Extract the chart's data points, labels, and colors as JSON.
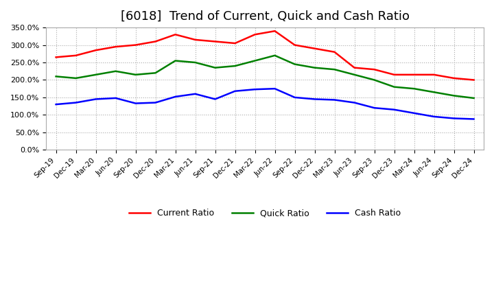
{
  "title": "[6018]  Trend of Current, Quick and Cash Ratio",
  "x_labels": [
    "Sep-19",
    "Dec-19",
    "Mar-20",
    "Jun-20",
    "Sep-20",
    "Dec-20",
    "Mar-21",
    "Jun-21",
    "Sep-21",
    "Dec-21",
    "Mar-22",
    "Jun-22",
    "Sep-22",
    "Dec-22",
    "Mar-23",
    "Jun-23",
    "Sep-23",
    "Dec-23",
    "Mar-24",
    "Jun-24",
    "Sep-24",
    "Dec-24"
  ],
  "current_ratio": [
    265,
    270,
    285,
    295,
    300,
    310,
    330,
    315,
    310,
    305,
    330,
    340,
    300,
    290,
    280,
    235,
    230,
    215,
    215,
    215,
    205,
    200
  ],
  "quick_ratio": [
    210,
    205,
    215,
    225,
    215,
    220,
    255,
    250,
    235,
    240,
    255,
    270,
    245,
    235,
    230,
    215,
    200,
    180,
    175,
    165,
    155,
    148
  ],
  "cash_ratio": [
    130,
    135,
    145,
    148,
    133,
    135,
    152,
    160,
    145,
    168,
    173,
    175,
    150,
    145,
    143,
    135,
    120,
    115,
    105,
    95,
    90,
    88
  ],
  "ylim": [
    0,
    350
  ],
  "yticks": [
    0,
    50,
    100,
    150,
    200,
    250,
    300,
    350
  ],
  "current_color": "#FF0000",
  "quick_color": "#008000",
  "cash_color": "#0000FF",
  "bg_color": "#FFFFFF",
  "plot_bg_color": "#FFFFFF",
  "grid_color": "#AAAAAA",
  "title_fontsize": 13,
  "legend_labels": [
    "Current Ratio",
    "Quick Ratio",
    "Cash Ratio"
  ]
}
